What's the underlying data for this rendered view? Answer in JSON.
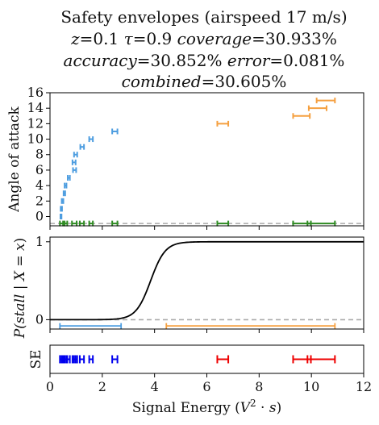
{
  "title": {
    "line1": "Safety envelopes (airspeed 17 m/s)",
    "z_label": "z",
    "z_value": "=0.1",
    "tau_label": "τ",
    "tau_value": "=0.9",
    "coverage_label": "coverage",
    "coverage_value": "=30.933%",
    "accuracy_label": "accuracy",
    "accuracy_value": "=30.852%",
    "error_label": "error",
    "error_value": "=0.081%",
    "combined_label": "combined",
    "combined_value": "=30.605%"
  },
  "chart_data": [
    {
      "type": "scatter",
      "panel": "top",
      "ylabel": "Angle of attack",
      "xlim": [
        0,
        12
      ],
      "ylim": [
        -1.2,
        16
      ],
      "yticks": [
        0,
        2,
        4,
        6,
        8,
        10,
        12,
        14,
        16
      ],
      "reference_line": {
        "y": -0.9,
        "style": "dashed",
        "color": "#aaaaaa"
      },
      "colors": {
        "stable": "#4d9de0",
        "stall": "#f5a040",
        "envelope": "#2e8b22"
      },
      "series": [
        {
          "points": [
            {
              "y": 0,
              "xmin": 0.4,
              "xmax": 0.44
            },
            {
              "y": 1,
              "xmin": 0.41,
              "xmax": 0.46
            },
            {
              "y": 2,
              "xmin": 0.45,
              "xmax": 0.51
            },
            {
              "y": 3,
              "xmin": 0.52,
              "xmax": 0.58
            },
            {
              "y": 4,
              "xmin": 0.56,
              "xmax": 0.63
            },
            {
              "y": 5,
              "xmin": 0.68,
              "xmax": 0.76
            },
            {
              "y": 6,
              "xmin": 0.88,
              "xmax": 1.0
            },
            {
              "y": 7,
              "xmin": 0.86,
              "xmax": 0.98
            },
            {
              "y": 8,
              "xmin": 0.92,
              "xmax": 1.04
            },
            {
              "y": 9,
              "xmin": 1.16,
              "xmax": 1.3
            },
            {
              "y": 10,
              "xmin": 1.5,
              "xmax": 1.64
            },
            {
              "y": 11,
              "xmin": 2.38,
              "xmax": 2.58
            }
          ]
        },
        {
          "points": [
            {
              "y": 12,
              "xmin": 6.4,
              "xmax": 6.82
            },
            {
              "y": 13,
              "xmin": 9.3,
              "xmax": 9.94
            },
            {
              "y": 14,
              "xmin": 9.9,
              "xmax": 10.58
            },
            {
              "y": 15,
              "xmin": 10.2,
              "xmax": 10.9
            }
          ]
        },
        {
          "points": [
            {
              "y": -0.9,
              "xmin": 0.38,
              "xmax": 0.56
            },
            {
              "y": -0.9,
              "xmin": 0.5,
              "xmax": 0.66
            },
            {
              "y": -0.9,
              "xmin": 0.84,
              "xmax": 1.02
            },
            {
              "y": -0.9,
              "xmin": 1.14,
              "xmax": 1.3
            },
            {
              "y": -0.9,
              "xmin": 1.5,
              "xmax": 1.64
            },
            {
              "y": -0.9,
              "xmin": 2.38,
              "xmax": 2.58
            },
            {
              "y": -0.9,
              "xmin": 6.4,
              "xmax": 6.82
            },
            {
              "y": -0.9,
              "xmin": 9.3,
              "xmax": 10.9
            },
            {
              "y": -0.9,
              "xmin": 9.85,
              "xmax": 9.98
            }
          ]
        }
      ]
    },
    {
      "type": "line",
      "panel": "middle",
      "ylabel_prefix": "P(",
      "ylabel_var": "stall",
      "ylabel_mid": " | ",
      "ylabel_X": "X",
      "ylabel_eq": " = ",
      "ylabel_x": "x",
      "ylabel_suffix": ")",
      "xlim": [
        0,
        12
      ],
      "ylim": [
        -0.12,
        1.06
      ],
      "yticks": [
        0,
        1
      ],
      "curve": {
        "type": "sigmoid",
        "center": 3.85,
        "scale": 0.28,
        "color": "#000000"
      },
      "reference_line": {
        "y": 0,
        "style": "dashed",
        "color": "#aaaaaa"
      },
      "ranges": [
        {
          "y": -0.08,
          "xmin": 0.38,
          "xmax": 2.72,
          "color": "#4d9de0"
        },
        {
          "y": -0.08,
          "xmin": 4.45,
          "xmax": 10.9,
          "color": "#f5a040"
        }
      ]
    },
    {
      "type": "scatter",
      "panel": "bottom",
      "ylabel": "SE",
      "xlabel_prefix": "Signal Energy (",
      "xlabel_var": "V",
      "xlabel_sup": "2",
      "xlabel_mid": " · ",
      "xlabel_s": "s",
      "xlabel_suffix": ")",
      "xlim": [
        0,
        12
      ],
      "xticks": [
        0,
        2,
        4,
        6,
        8,
        10,
        12
      ],
      "colors": {
        "blue": "#0000ee",
        "red": "#ee0000"
      },
      "series": [
        {
          "intervals": [
            {
              "xmin": 0.38,
              "xmax": 0.46
            },
            {
              "xmin": 0.44,
              "xmax": 0.52
            },
            {
              "xmin": 0.5,
              "xmax": 0.58
            },
            {
              "xmin": 0.56,
              "xmax": 0.64
            },
            {
              "xmin": 0.66,
              "xmax": 0.76
            },
            {
              "xmin": 0.86,
              "xmax": 0.98
            },
            {
              "xmin": 0.92,
              "xmax": 1.04
            },
            {
              "xmin": 1.14,
              "xmax": 1.3
            },
            {
              "xmin": 1.5,
              "xmax": 1.64
            },
            {
              "xmin": 2.38,
              "xmax": 2.58
            }
          ]
        },
        {
          "intervals": [
            {
              "xmin": 6.4,
              "xmax": 6.82
            },
            {
              "xmin": 9.3,
              "xmax": 10.9
            },
            {
              "xmin": 9.85,
              "xmax": 9.98
            }
          ]
        }
      ]
    }
  ]
}
